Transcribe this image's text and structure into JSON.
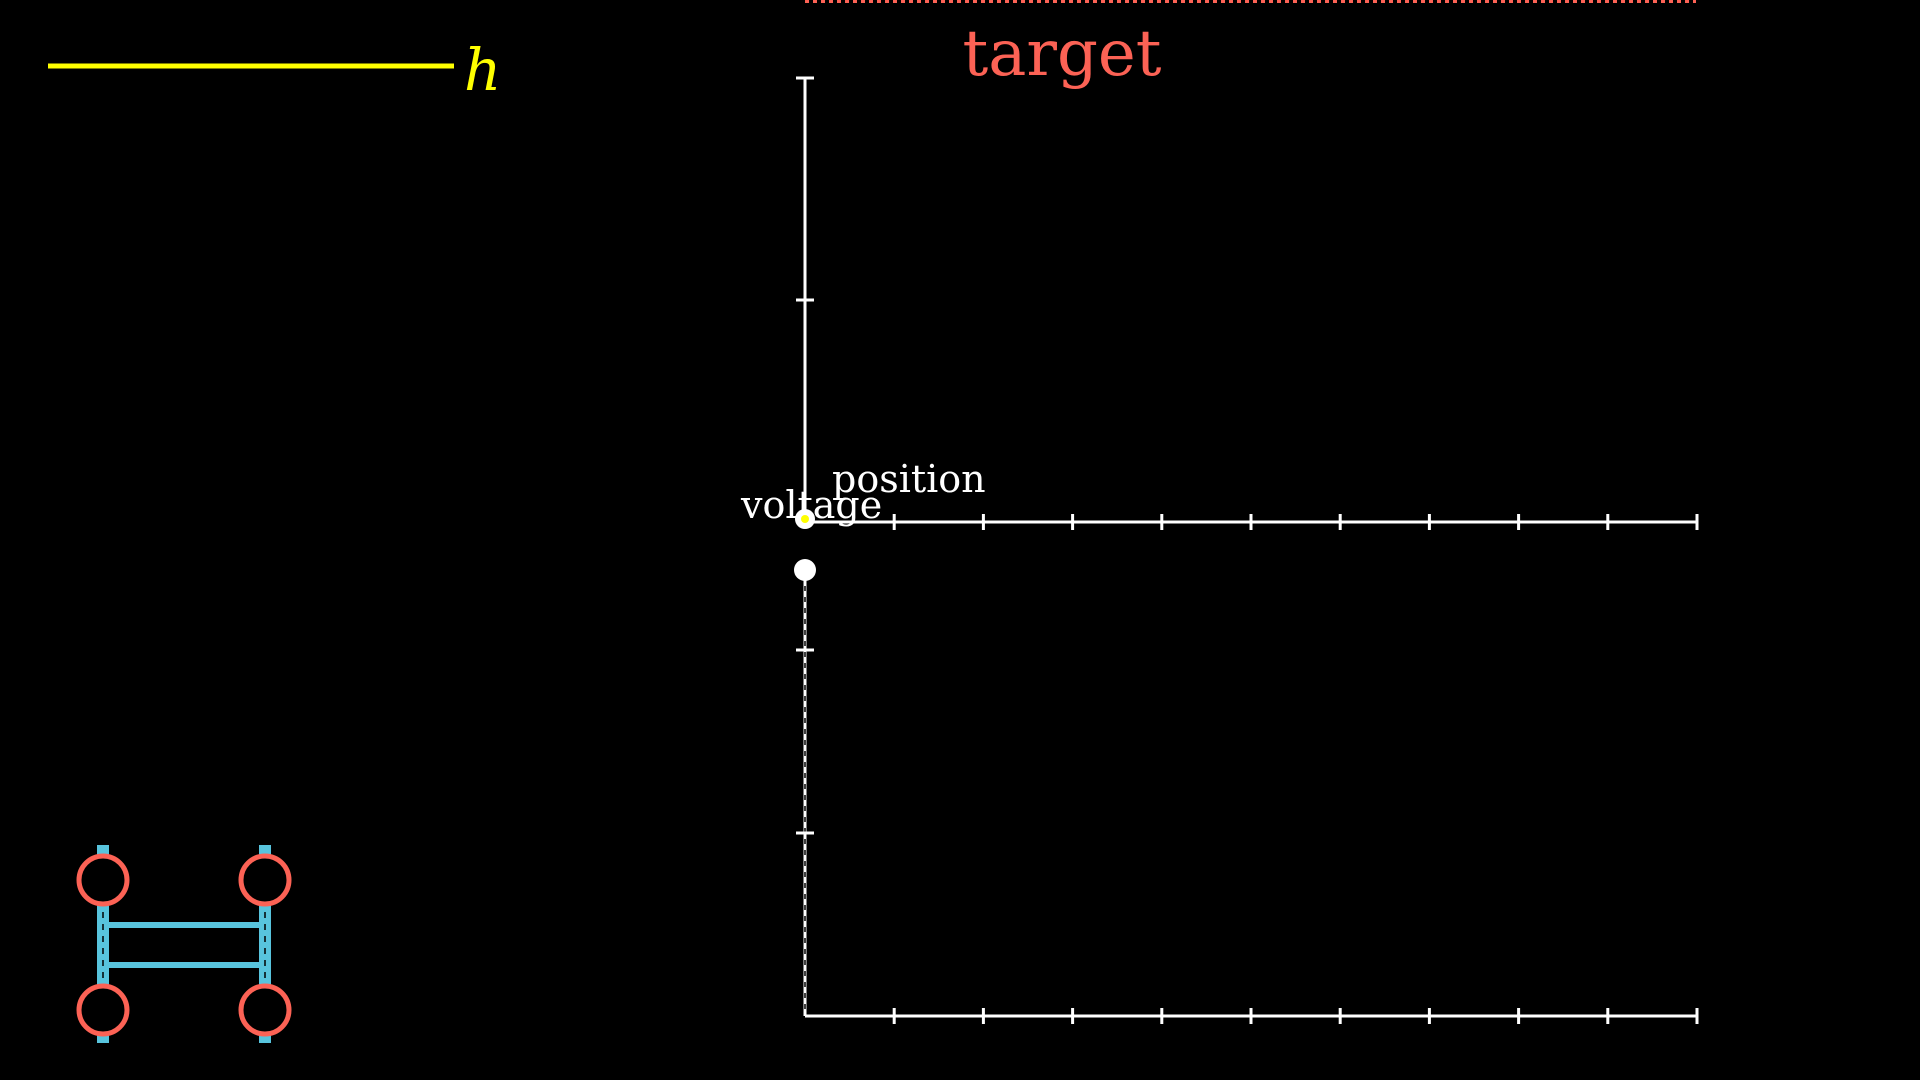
{
  "legend": {
    "symbol": "h",
    "color": "#FFFF00"
  },
  "target_label": "target",
  "top_plot": {
    "xlabel": "position",
    "ylabel": "voltage"
  },
  "colors": {
    "background": "#000000",
    "axis": "#FFFFFF",
    "target": "#FC6255",
    "vehicle_frame": "#58C4DD",
    "wheel": "#FC6255",
    "marker_yellow": "#FFFF00"
  },
  "icons": {
    "vehicle": "vehicle-icon",
    "wheel": "wheel-icon"
  }
}
